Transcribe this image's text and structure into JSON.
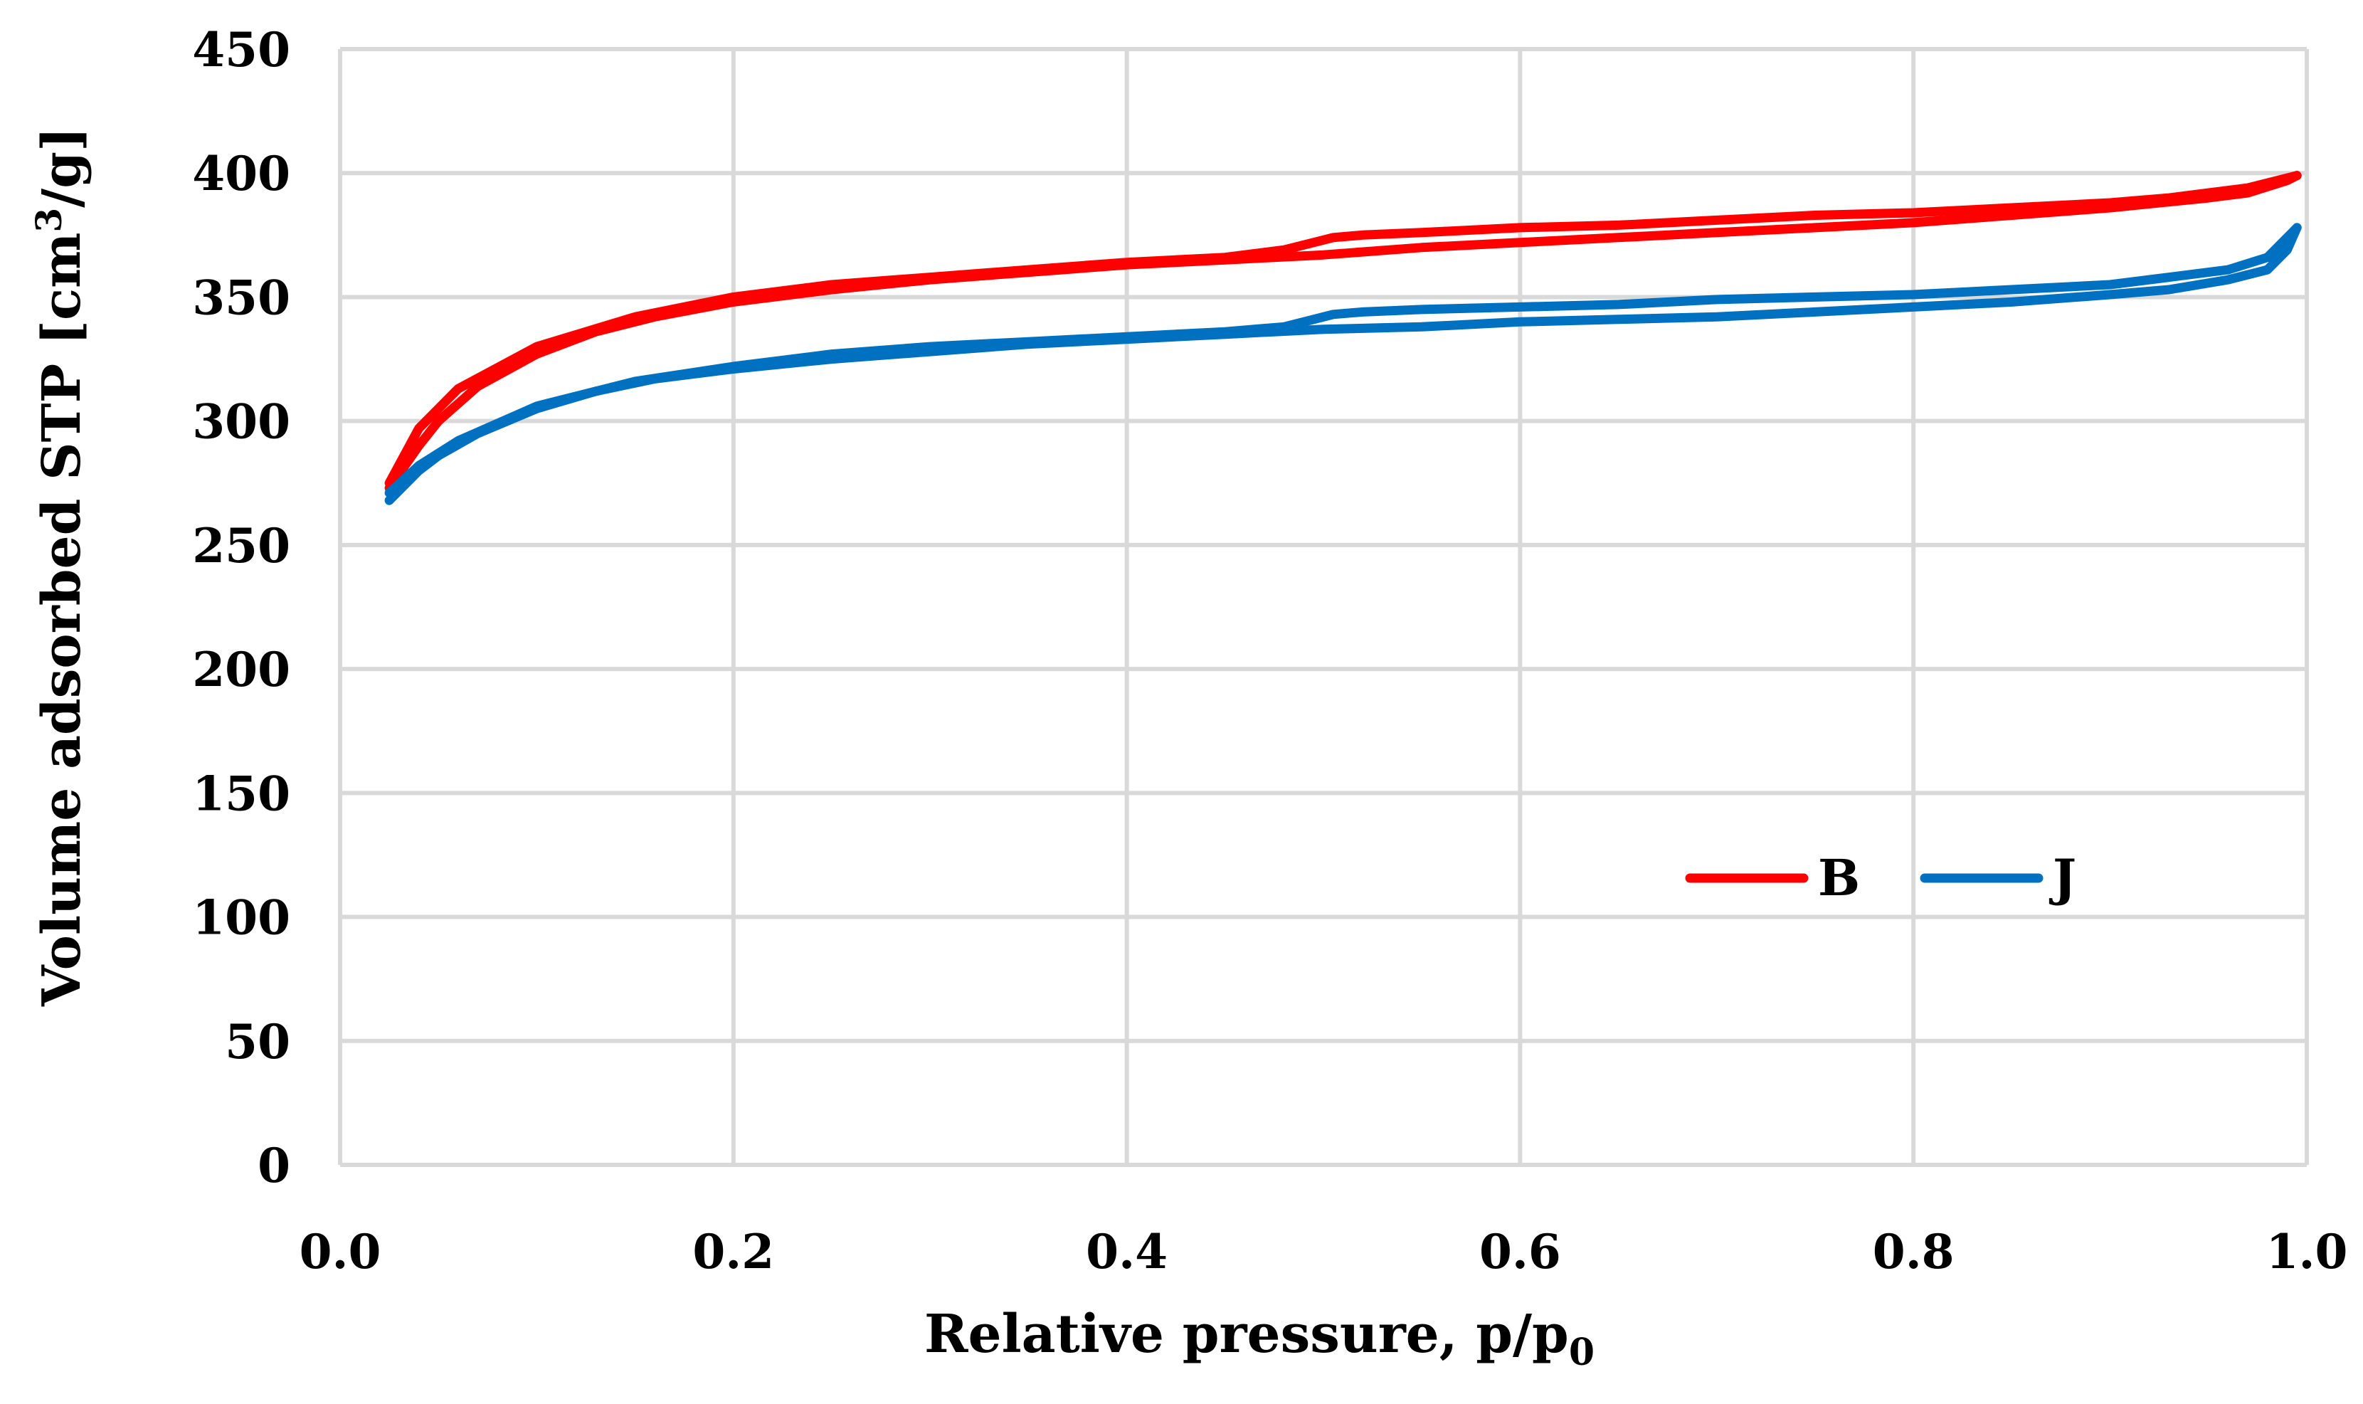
{
  "chart_data": {
    "type": "line",
    "title": "",
    "xlabel": "Relative pressure, p/p",
    "xlabel_subscript": "0",
    "ylabel": "Volume adsorbed STP [cm",
    "ylabel_superscript": "3",
    "ylabel_suffix": "/g]",
    "xlim": [
      0,
      1
    ],
    "ylim": [
      0,
      450
    ],
    "x_ticks": [
      "0.0",
      "0.2",
      "0.4",
      "0.6",
      "0.8",
      "1.0"
    ],
    "y_ticks": [
      "0",
      "50",
      "100",
      "150",
      "200",
      "250",
      "300",
      "350",
      "400",
      "450"
    ],
    "grid": true,
    "legend": "center-right",
    "series": [
      {
        "name": "B",
        "color": "#ff0000",
        "adsorption": {
          "x": [
            0.025,
            0.04,
            0.05,
            0.07,
            0.1,
            0.13,
            0.16,
            0.2,
            0.25,
            0.3,
            0.35,
            0.4,
            0.45,
            0.5,
            0.55,
            0.6,
            0.65,
            0.7,
            0.75,
            0.8,
            0.85,
            0.9,
            0.95,
            0.97,
            0.99,
            0.995
          ],
          "y": [
            273,
            290,
            300,
            314,
            327,
            336,
            342,
            348,
            353,
            357,
            360,
            363,
            365,
            367,
            370,
            372,
            374,
            376,
            378,
            380,
            383,
            386,
            390,
            392,
            397,
            399
          ]
        },
        "desorption": {
          "x": [
            0.995,
            0.97,
            0.95,
            0.93,
            0.9,
            0.85,
            0.8,
            0.75,
            0.7,
            0.65,
            0.6,
            0.55,
            0.52,
            0.505,
            0.5,
            0.48,
            0.45,
            0.4,
            0.35,
            0.3,
            0.25,
            0.2,
            0.15,
            0.1,
            0.06,
            0.04,
            0.025
          ],
          "y": [
            399,
            394,
            392,
            390,
            388,
            386,
            384,
            383,
            381,
            379,
            378,
            376,
            375,
            374,
            373,
            369,
            366,
            364,
            361,
            358,
            355,
            350,
            342,
            330,
            313,
            297,
            275
          ]
        }
      },
      {
        "name": "J",
        "color": "#0070c0",
        "adsorption": {
          "x": [
            0.025,
            0.04,
            0.05,
            0.07,
            0.1,
            0.13,
            0.16,
            0.2,
            0.25,
            0.3,
            0.35,
            0.4,
            0.45,
            0.5,
            0.55,
            0.6,
            0.65,
            0.7,
            0.75,
            0.8,
            0.85,
            0.9,
            0.93,
            0.96,
            0.98,
            0.99,
            0.995
          ],
          "y": [
            268,
            280,
            286,
            295,
            305,
            312,
            317,
            321,
            325,
            328,
            331,
            333,
            335,
            337,
            338,
            340,
            341,
            342,
            344,
            346,
            348,
            351,
            353,
            357,
            361,
            369,
            378
          ]
        },
        "desorption": {
          "x": [
            0.995,
            0.98,
            0.96,
            0.93,
            0.9,
            0.85,
            0.8,
            0.75,
            0.7,
            0.65,
            0.6,
            0.55,
            0.52,
            0.505,
            0.5,
            0.48,
            0.45,
            0.4,
            0.35,
            0.3,
            0.25,
            0.2,
            0.15,
            0.1,
            0.06,
            0.04,
            0.025
          ],
          "y": [
            378,
            366,
            361,
            358,
            355,
            353,
            351,
            350,
            349,
            347,
            346,
            345,
            344,
            343,
            342,
            338,
            336,
            334,
            332,
            330,
            327,
            322,
            316,
            306,
            292,
            282,
            271
          ]
        }
      }
    ]
  }
}
